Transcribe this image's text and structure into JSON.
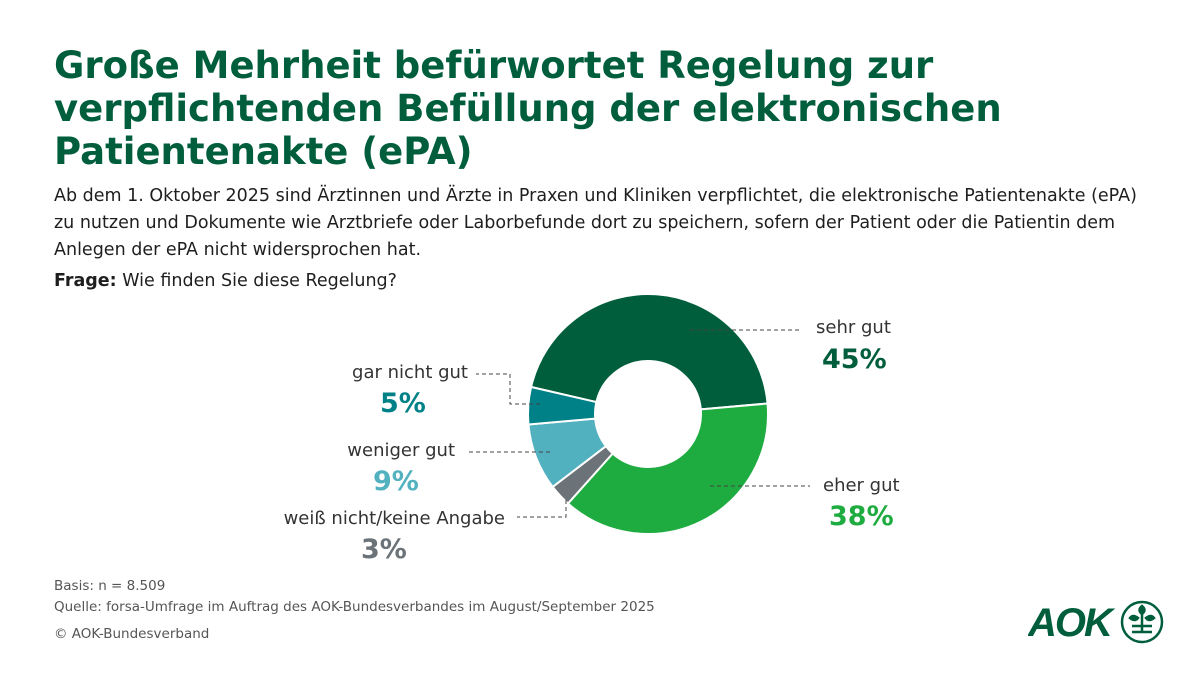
{
  "title": "Große Mehrheit befürwortet Regelung zur verpflichtenden Befüllung der elektronischen Patientenakte (ePA)",
  "subtitle": "Ab dem 1. Oktober 2025 sind Ärztinnen und Ärzte in Praxen und Kliniken verpflichtet, die elektronische Patientenakte (ePA) zu nutzen und Dokumente wie Arztbriefe oder Laborbefunde dort zu speichern, sofern der Patient oder die Patientin dem Anlegen der ePA nicht widersprochen hat.",
  "question_label": "Frage:",
  "question": "Wie finden Sie diese Regelung?",
  "chart_data": {
    "type": "pie",
    "donut": true,
    "categories": [
      "sehr gut",
      "eher gut",
      "weiß nicht/keine Angabe",
      "weniger gut",
      "gar nicht gut"
    ],
    "values": [
      45,
      38,
      3,
      9,
      5
    ],
    "labels": [
      "45%",
      "38%",
      "3%",
      "9%",
      "5%"
    ],
    "colors": [
      "#005e3c",
      "#1eab40",
      "#6b7378",
      "#52b1bf",
      "#008187"
    ]
  },
  "footer": {
    "basis": "Basis: n = 8.509",
    "source": "Quelle: forsa-Umfrage im Auftrag des AOK-Bundesverbandes im August/September 2025",
    "copyright": "© AOK-Bundesverband"
  },
  "logo": {
    "text": "AOK",
    "color": "#005e3c"
  }
}
